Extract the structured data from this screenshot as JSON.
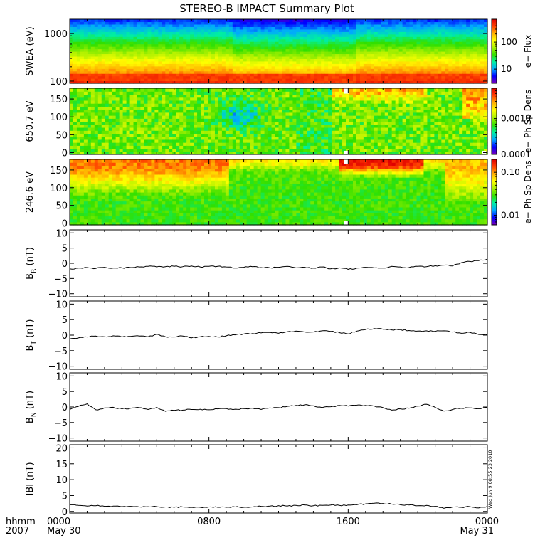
{
  "title": "STEREO-B IMPACT Summary Plot",
  "timestamp": "Wed Jun  9 08:55:23 2010",
  "time_axis": {
    "row1_labels": [
      "hhmm",
      "0000",
      "0800",
      "1600",
      "0000"
    ],
    "row2_labels": [
      "2007",
      "May 30",
      "May 31"
    ],
    "range_hours": [
      0,
      24
    ],
    "major_ticks_hours": [
      0,
      8,
      16,
      24
    ],
    "minor_tick_step_hours": 1
  },
  "colorbar_colors": [
    "#7a00b8",
    "#0000ff",
    "#00a8ff",
    "#00f0a0",
    "#30e000",
    "#a8f000",
    "#ffff00",
    "#ffb000",
    "#ff4000",
    "#e00000"
  ],
  "chart_data": [
    {
      "type": "heatmap",
      "ylabel": "SWEA (eV)",
      "yscale": "log",
      "ylim": [
        90,
        2000
      ],
      "yticks": [
        {
          "v": 100,
          "label": "100"
        },
        {
          "v": 1000,
          "label": "1000"
        }
      ],
      "colorbar_label": "e− Flux",
      "colorbar_scale": "log",
      "colorbar_range": [
        3,
        700
      ],
      "colorbar_ticks": [
        {
          "v": 10,
          "label": "10"
        },
        {
          "v": 100,
          "label": "100"
        }
      ],
      "colorbar_minor_ticks": [
        20,
        30,
        40,
        50,
        60,
        70,
        80,
        90,
        200,
        300,
        400,
        500,
        600
      ],
      "color_field": "energy gradient: red/orange below ~150 eV, yellow ~200-400 eV, green ~500-900 eV, cyan-blue above ~1200 eV; slightly lower flux 09:30-16:00"
    },
    {
      "type": "heatmap",
      "ylabel": "650.7 eV",
      "ylim": [
        -5,
        180
      ],
      "yticks": [
        {
          "v": 0,
          "label": "0"
        },
        {
          "v": 50,
          "label": "50"
        },
        {
          "v": 100,
          "label": "100"
        },
        {
          "v": 150,
          "label": "150"
        }
      ],
      "colorbar_label": "e− Ph Sp Dens",
      "colorbar_scale": "log",
      "colorbar_range": [
        0.0001,
        0.007
      ],
      "colorbar_ticks": [
        {
          "v": 0.0001,
          "label": "0.0001"
        },
        {
          "v": 0.001,
          "label": "0.0010"
        }
      ],
      "colorbar_minor_ticks": [
        0.0002,
        0.0003,
        0.0004,
        0.0005,
        0.0006,
        0.0007,
        0.0008,
        0.0009,
        0.002,
        0.003,
        0.004,
        0.005,
        0.006
      ],
      "color_field": "mostly green-yellow streaks; cyan patch ~08:30-11:00 near 100-120 deg; orange-red near top after 15:00 and right edge after 23:00",
      "data_gaps": [
        {
          "t": 15.9,
          "deg": [
            165,
            180
          ]
        },
        {
          "t": 15.9,
          "deg": [
            -5,
            5
          ]
        },
        {
          "t": 23.8,
          "deg": [
            -5,
            5
          ]
        }
      ]
    },
    {
      "type": "heatmap",
      "ylabel": "246.6 eV",
      "ylim": [
        -5,
        180
      ],
      "yticks": [
        {
          "v": 0,
          "label": "0"
        },
        {
          "v": 50,
          "label": "50"
        },
        {
          "v": 100,
          "label": "100"
        },
        {
          "v": 150,
          "label": "150"
        }
      ],
      "colorbar_label": "e− Ph Sp Dens",
      "colorbar_scale": "log",
      "colorbar_range": [
        0.006,
        0.2
      ],
      "colorbar_ticks": [
        {
          "v": 0.01,
          "label": "0.01"
        },
        {
          "v": 0.1,
          "label": "0.10"
        }
      ],
      "colorbar_minor_ticks": [
        0.007,
        0.008,
        0.009,
        0.02,
        0.03,
        0.04,
        0.05,
        0.06,
        0.07,
        0.08,
        0.09
      ],
      "color_field": "orange-yellow near 150-180 deg before 09:00, green below; green dominates 09:00-21:30 with red band near top 16:00-20:00; yellow-orange after 21:30",
      "data_gaps": [
        {
          "t": 15.9,
          "deg": [
            168,
            180
          ]
        },
        {
          "t": 15.9,
          "deg": [
            -5,
            5
          ]
        }
      ]
    },
    {
      "type": "line",
      "ylabel": "B_R (nT)",
      "ylabel_main": "B",
      "ylabel_sub": "R",
      "ylabel_unit": " (nT)",
      "ylim": [
        -11,
        11
      ],
      "yticks": [
        {
          "v": -10,
          "label": "−10"
        },
        {
          "v": -5,
          "label": "−5"
        },
        {
          "v": 0,
          "label": "0"
        },
        {
          "v": 5,
          "label": "5"
        },
        {
          "v": 10,
          "label": "10"
        }
      ],
      "x": [
        0,
        0.5,
        1,
        1.5,
        2,
        2.5,
        3,
        3.5,
        4,
        4.5,
        5,
        5.5,
        6,
        6.5,
        7,
        7.5,
        8,
        8.5,
        9,
        9.5,
        10,
        10.5,
        11,
        11.5,
        12,
        12.5,
        13,
        13.5,
        14,
        14.5,
        15,
        15.5,
        16,
        16.5,
        17,
        17.5,
        18,
        18.5,
        19,
        19.5,
        20,
        20.5,
        21,
        21.5,
        22,
        22.5,
        23,
        23.5,
        24
      ],
      "y": [
        -1.8,
        -1.6,
        -1.4,
        -1.7,
        -1.3,
        -1.6,
        -1.5,
        -1.4,
        -1.2,
        -1.0,
        -1.2,
        -1.1,
        -1.0,
        -1.1,
        -0.9,
        -1.2,
        -1.0,
        -1.0,
        -1.2,
        -1.6,
        -1.3,
        -1.1,
        -1.4,
        -1.5,
        -1.3,
        -1.0,
        -1.5,
        -1.3,
        -1.6,
        -1.2,
        -1.8,
        -1.5,
        -2.0,
        -1.6,
        -1.3,
        -1.5,
        -1.6,
        -1.0,
        -1.2,
        -1.4,
        -1.0,
        -1.1,
        -0.8,
        -0.6,
        -0.9,
        0.2,
        0.6,
        0.9,
        1.4
      ]
    },
    {
      "type": "line",
      "ylabel": "B_T (nT)",
      "ylabel_main": "B",
      "ylabel_sub": "T",
      "ylabel_unit": " (nT)",
      "ylim": [
        -11,
        11
      ],
      "yticks": [
        {
          "v": -10,
          "label": "−10"
        },
        {
          "v": -5,
          "label": "−5"
        },
        {
          "v": 0,
          "label": "0"
        },
        {
          "v": 5,
          "label": "5"
        },
        {
          "v": 10,
          "label": "10"
        }
      ],
      "x": [
        0,
        0.5,
        1,
        1.5,
        2,
        2.5,
        3,
        3.5,
        4,
        4.5,
        5,
        5.5,
        6,
        6.5,
        7,
        7.5,
        8,
        8.5,
        9,
        9.5,
        10,
        10.5,
        11,
        11.5,
        12,
        12.5,
        13,
        13.5,
        14,
        14.5,
        15,
        15.5,
        16,
        16.5,
        17,
        17.5,
        18,
        18.5,
        19,
        19.5,
        20,
        20.5,
        21,
        21.5,
        22,
        22.5,
        23,
        23.5,
        24
      ],
      "y": [
        -1.2,
        -0.9,
        -0.6,
        -0.3,
        -0.5,
        -0.2,
        -0.6,
        -0.4,
        -0.3,
        -0.5,
        0.3,
        -0.5,
        -0.6,
        -0.3,
        -0.9,
        -0.5,
        -0.4,
        -0.6,
        -0.2,
        0.1,
        0.4,
        0.5,
        0.7,
        0.9,
        0.6,
        1.1,
        1.3,
        1.0,
        1.0,
        1.4,
        1.2,
        0.8,
        0.4,
        1.3,
        1.8,
        2.1,
        1.9,
        1.7,
        1.8,
        1.5,
        1.3,
        1.4,
        1.2,
        1.4,
        1.0,
        0.6,
        0.9,
        0.2,
        0.1
      ]
    },
    {
      "type": "line",
      "ylabel": "B_N (nT)",
      "ylabel_main": "B",
      "ylabel_sub": "N",
      "ylabel_unit": " (nT)",
      "ylim": [
        -11,
        11
      ],
      "yticks": [
        {
          "v": -10,
          "label": "−10"
        },
        {
          "v": -5,
          "label": "−5"
        },
        {
          "v": 0,
          "label": "0"
        },
        {
          "v": 5,
          "label": "5"
        },
        {
          "v": 10,
          "label": "10"
        }
      ],
      "x": [
        0,
        0.5,
        1,
        1.5,
        2,
        2.5,
        3,
        3.5,
        4,
        4.5,
        5,
        5.5,
        6,
        6.5,
        7,
        7.5,
        8,
        8.5,
        9,
        9.5,
        10,
        10.5,
        11,
        11.5,
        12,
        12.5,
        13,
        13.5,
        14,
        14.5,
        15,
        15.5,
        16,
        16.5,
        17,
        17.5,
        18,
        18.5,
        19,
        19.5,
        20,
        20.5,
        21,
        21.5,
        22,
        22.5,
        23,
        23.5,
        24
      ],
      "y": [
        -0.8,
        0.2,
        1.0,
        -0.9,
        -0.3,
        -0.1,
        -0.6,
        -0.4,
        -0.2,
        -0.8,
        -0.1,
        -1.4,
        -1.1,
        -1.0,
        -0.8,
        -0.7,
        -0.9,
        -0.6,
        -0.5,
        -0.7,
        -0.5,
        -0.4,
        -0.8,
        -0.3,
        -0.2,
        0.2,
        0.5,
        0.7,
        0.4,
        -0.2,
        0.1,
        0.5,
        0.3,
        0.6,
        0.5,
        0.3,
        -0.2,
        -1.0,
        -0.6,
        -0.4,
        0.3,
        0.9,
        -0.1,
        -1.3,
        -0.8,
        -0.4,
        -0.3,
        -0.5,
        -0.2
      ]
    },
    {
      "type": "line",
      "ylabel": "|B| (nT)",
      "ylabel_text": "IBI (nT)",
      "ylim": [
        -0.5,
        21
      ],
      "yticks": [
        {
          "v": 0,
          "label": "0"
        },
        {
          "v": 5,
          "label": "5"
        },
        {
          "v": 10,
          "label": "10"
        },
        {
          "v": 15,
          "label": "15"
        },
        {
          "v": 20,
          "label": "20"
        }
      ],
      "x": [
        0,
        0.5,
        1,
        1.5,
        2,
        2.5,
        3,
        3.5,
        4,
        4.5,
        5,
        5.5,
        6,
        6.5,
        7,
        7.5,
        8,
        8.5,
        9,
        9.5,
        10,
        10.5,
        11,
        11.5,
        12,
        12.5,
        13,
        13.5,
        14,
        14.5,
        15,
        15.5,
        16,
        16.5,
        17,
        17.5,
        18,
        18.5,
        19,
        19.5,
        20,
        20.5,
        21,
        21.5,
        22,
        22.5,
        23,
        23.5,
        24
      ],
      "y": [
        2.1,
        1.9,
        1.7,
        1.8,
        1.6,
        1.7,
        1.5,
        1.6,
        1.4,
        1.5,
        1.5,
        1.4,
        1.3,
        1.4,
        1.3,
        1.3,
        1.4,
        1.3,
        1.3,
        1.4,
        1.3,
        1.4,
        1.6,
        1.7,
        1.8,
        1.7,
        1.9,
        2.0,
        1.8,
        1.9,
        2.0,
        1.9,
        2.0,
        2.1,
        2.4,
        2.6,
        2.5,
        2.3,
        2.1,
        2.0,
        1.8,
        1.9,
        1.6,
        1.0,
        1.4,
        1.3,
        1.5,
        1.1,
        1.6
      ]
    }
  ]
}
